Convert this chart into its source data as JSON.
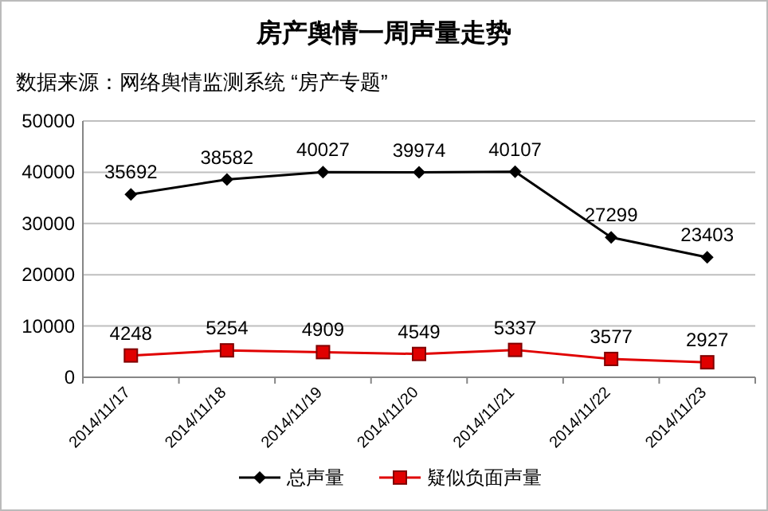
{
  "chart_data": {
    "type": "line",
    "title": "房产舆情一周声量走势",
    "subtitle": "数据来源：网络舆情监测系统 “房产专题”",
    "categories": [
      "2014/11/17",
      "2014/11/18",
      "2014/11/19",
      "2014/11/20",
      "2014/11/21",
      "2014/11/22",
      "2014/11/23"
    ],
    "series": [
      {
        "name": "总声量",
        "color": "#000000",
        "marker": "diamond",
        "values": [
          35692,
          38582,
          40027,
          39974,
          40107,
          27299,
          23403
        ]
      },
      {
        "name": "疑似负面声量",
        "color": "#e00000",
        "marker": "square",
        "values": [
          4248,
          5254,
          4909,
          4549,
          5337,
          3577,
          2927
        ]
      }
    ],
    "ylim": [
      0,
      50000
    ],
    "yticks": [
      0,
      10000,
      20000,
      30000,
      40000,
      50000
    ],
    "grid": "y",
    "legend": "bottom",
    "data_labels": true
  }
}
